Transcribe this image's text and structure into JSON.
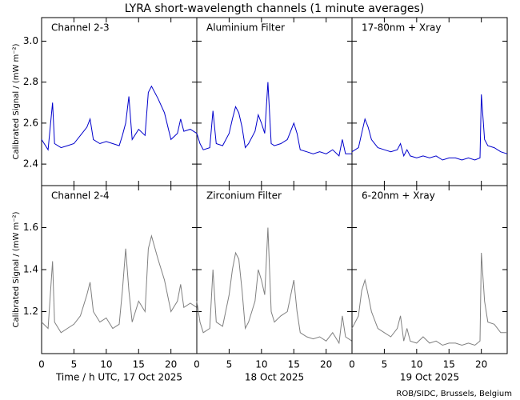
{
  "title": "LYRA short-wavelength channels (1 minute averages)",
  "footer": "ROB/SIDC, Brussels, Belgium",
  "chart_data": [
    {
      "type": "line",
      "label": "Channel 2-3",
      "color": "#0000cc",
      "ylabel": "Calibrated Signal / (mW m⁻²)",
      "x": [
        0,
        1,
        1.7,
        2,
        3,
        4,
        5,
        6,
        7,
        7.5,
        8,
        9,
        10,
        11,
        12,
        12.5,
        13,
        13.5,
        14,
        15,
        16,
        16.5,
        17,
        18,
        19,
        20,
        21,
        21.5,
        22,
        23,
        24
      ],
      "values": [
        2.52,
        2.47,
        2.7,
        2.5,
        2.48,
        2.49,
        2.5,
        2.54,
        2.58,
        2.62,
        2.52,
        2.5,
        2.51,
        2.5,
        2.49,
        2.54,
        2.6,
        2.73,
        2.52,
        2.57,
        2.54,
        2.75,
        2.78,
        2.72,
        2.65,
        2.52,
        2.55,
        2.62,
        2.56,
        2.57,
        2.55
      ],
      "xlim": [
        0,
        24
      ],
      "xticks": [
        0,
        5,
        10,
        15,
        20
      ],
      "ylim": [
        2.295,
        3.115
      ],
      "yticks": [
        2.4,
        2.6,
        2.8,
        {
          "value": 3.0,
          "label": "3.0"
        }
      ]
    },
    {
      "type": "line",
      "label": "Aluminium Filter",
      "color": "#0000cc",
      "x": [
        0,
        0.5,
        1,
        2,
        2.5,
        3,
        4,
        5,
        5.5,
        6,
        6.5,
        7,
        7.5,
        8,
        9,
        9.5,
        10,
        10.5,
        11,
        11.5,
        12,
        13,
        14,
        15,
        15.5,
        16,
        17,
        18,
        19,
        20,
        21,
        22,
        22.5,
        23,
        24
      ],
      "values": [
        2.55,
        2.5,
        2.47,
        2.48,
        2.66,
        2.5,
        2.49,
        2.55,
        2.62,
        2.68,
        2.65,
        2.58,
        2.48,
        2.5,
        2.56,
        2.64,
        2.6,
        2.55,
        2.8,
        2.5,
        2.49,
        2.5,
        2.52,
        2.6,
        2.55,
        2.47,
        2.46,
        2.45,
        2.46,
        2.45,
        2.47,
        2.44,
        2.52,
        2.45,
        2.45
      ],
      "xlim": [
        0,
        24
      ],
      "xticks": [
        0,
        5,
        10,
        15,
        20
      ],
      "ylim": [
        2.295,
        3.115
      ],
      "yticks": [
        2.4,
        2.6,
        2.8,
        {
          "value": 3.0,
          "label": "3.0"
        }
      ]
    },
    {
      "type": "line",
      "label": "17-80nm + Xray",
      "color": "#0000cc",
      "x": [
        0,
        1,
        1.5,
        2,
        2.5,
        3,
        4,
        5,
        6,
        7,
        7.5,
        8,
        8.5,
        9,
        10,
        11,
        12,
        13,
        14,
        15,
        16,
        17,
        18,
        19,
        19.8,
        20,
        20.5,
        21,
        22,
        23,
        24
      ],
      "values": [
        2.46,
        2.48,
        2.55,
        2.62,
        2.58,
        2.52,
        2.48,
        2.47,
        2.46,
        2.47,
        2.5,
        2.44,
        2.47,
        2.44,
        2.43,
        2.44,
        2.43,
        2.44,
        2.42,
        2.43,
        2.43,
        2.42,
        2.43,
        2.42,
        2.43,
        2.74,
        2.52,
        2.49,
        2.48,
        2.46,
        2.45
      ],
      "xlim": [
        0,
        24
      ],
      "xticks": [
        0,
        5,
        10,
        15,
        20
      ],
      "ylim": [
        2.295,
        3.115
      ],
      "yticks": [
        2.4,
        2.6,
        2.8,
        {
          "value": 3.0,
          "label": "3.0"
        }
      ]
    },
    {
      "type": "line",
      "label": "Channel 2-4",
      "color": "#808080",
      "ylabel": "Calibrated Signal / (mW m⁻²)",
      "xlabel": "Time / h UTC, 17 Oct 2025",
      "x": [
        0,
        1,
        1.7,
        2,
        3,
        4,
        5,
        6,
        7,
        7.5,
        8,
        9,
        10,
        11,
        12,
        12.5,
        13,
        13.5,
        14,
        15,
        16,
        16.5,
        17,
        18,
        19,
        20,
        21,
        21.5,
        22,
        23,
        24
      ],
      "values": [
        1.15,
        1.12,
        1.44,
        1.15,
        1.1,
        1.12,
        1.14,
        1.18,
        1.28,
        1.34,
        1.2,
        1.15,
        1.17,
        1.12,
        1.14,
        1.3,
        1.5,
        1.3,
        1.15,
        1.25,
        1.2,
        1.5,
        1.56,
        1.45,
        1.35,
        1.2,
        1.25,
        1.33,
        1.22,
        1.24,
        1.22
      ],
      "xlim": [
        0,
        24
      ],
      "xticks": [
        0,
        5,
        10,
        15,
        20
      ],
      "ylim": [
        1.0,
        1.8
      ],
      "yticks": [
        1.2,
        1.4,
        1.6
      ]
    },
    {
      "type": "line",
      "label": "Zirconium Filter",
      "color": "#808080",
      "xlabel": "18 Oct 2025",
      "x": [
        0,
        0.5,
        1,
        2,
        2.5,
        3,
        4,
        5,
        5.5,
        6,
        6.5,
        7,
        7.5,
        8,
        9,
        9.5,
        10,
        10.5,
        11,
        11.5,
        12,
        13,
        14,
        15,
        15.5,
        16,
        17,
        18,
        19,
        20,
        21,
        22,
        22.5,
        23,
        24
      ],
      "values": [
        1.25,
        1.15,
        1.1,
        1.12,
        1.4,
        1.15,
        1.13,
        1.28,
        1.4,
        1.48,
        1.45,
        1.3,
        1.12,
        1.15,
        1.25,
        1.4,
        1.35,
        1.28,
        1.6,
        1.2,
        1.15,
        1.18,
        1.2,
        1.35,
        1.2,
        1.1,
        1.08,
        1.07,
        1.08,
        1.06,
        1.1,
        1.05,
        1.18,
        1.08,
        1.06
      ],
      "xlim": [
        0,
        24
      ],
      "xticks": [
        0,
        5,
        10,
        15,
        20
      ],
      "ylim": [
        1.0,
        1.8
      ],
      "yticks": [
        1.2,
        1.4,
        1.6
      ]
    },
    {
      "type": "line",
      "label": "6-20nm + Xray",
      "color": "#808080",
      "xlabel": "19 Oct 2025",
      "x": [
        0,
        1,
        1.5,
        2,
        2.5,
        3,
        4,
        5,
        6,
        7,
        7.5,
        8,
        8.5,
        9,
        10,
        11,
        12,
        13,
        14,
        15,
        16,
        17,
        18,
        19,
        19.8,
        20,
        20.5,
        21,
        22,
        23,
        24
      ],
      "values": [
        1.12,
        1.18,
        1.3,
        1.35,
        1.28,
        1.2,
        1.12,
        1.1,
        1.08,
        1.12,
        1.18,
        1.06,
        1.12,
        1.06,
        1.05,
        1.08,
        1.05,
        1.06,
        1.04,
        1.05,
        1.05,
        1.04,
        1.05,
        1.04,
        1.06,
        1.48,
        1.25,
        1.15,
        1.14,
        1.1,
        1.1
      ],
      "xlim": [
        0,
        24
      ],
      "xticks": [
        0,
        5,
        10,
        15,
        20
      ],
      "ylim": [
        1.0,
        1.8
      ],
      "yticks": [
        1.2,
        1.4,
        1.6
      ]
    }
  ]
}
